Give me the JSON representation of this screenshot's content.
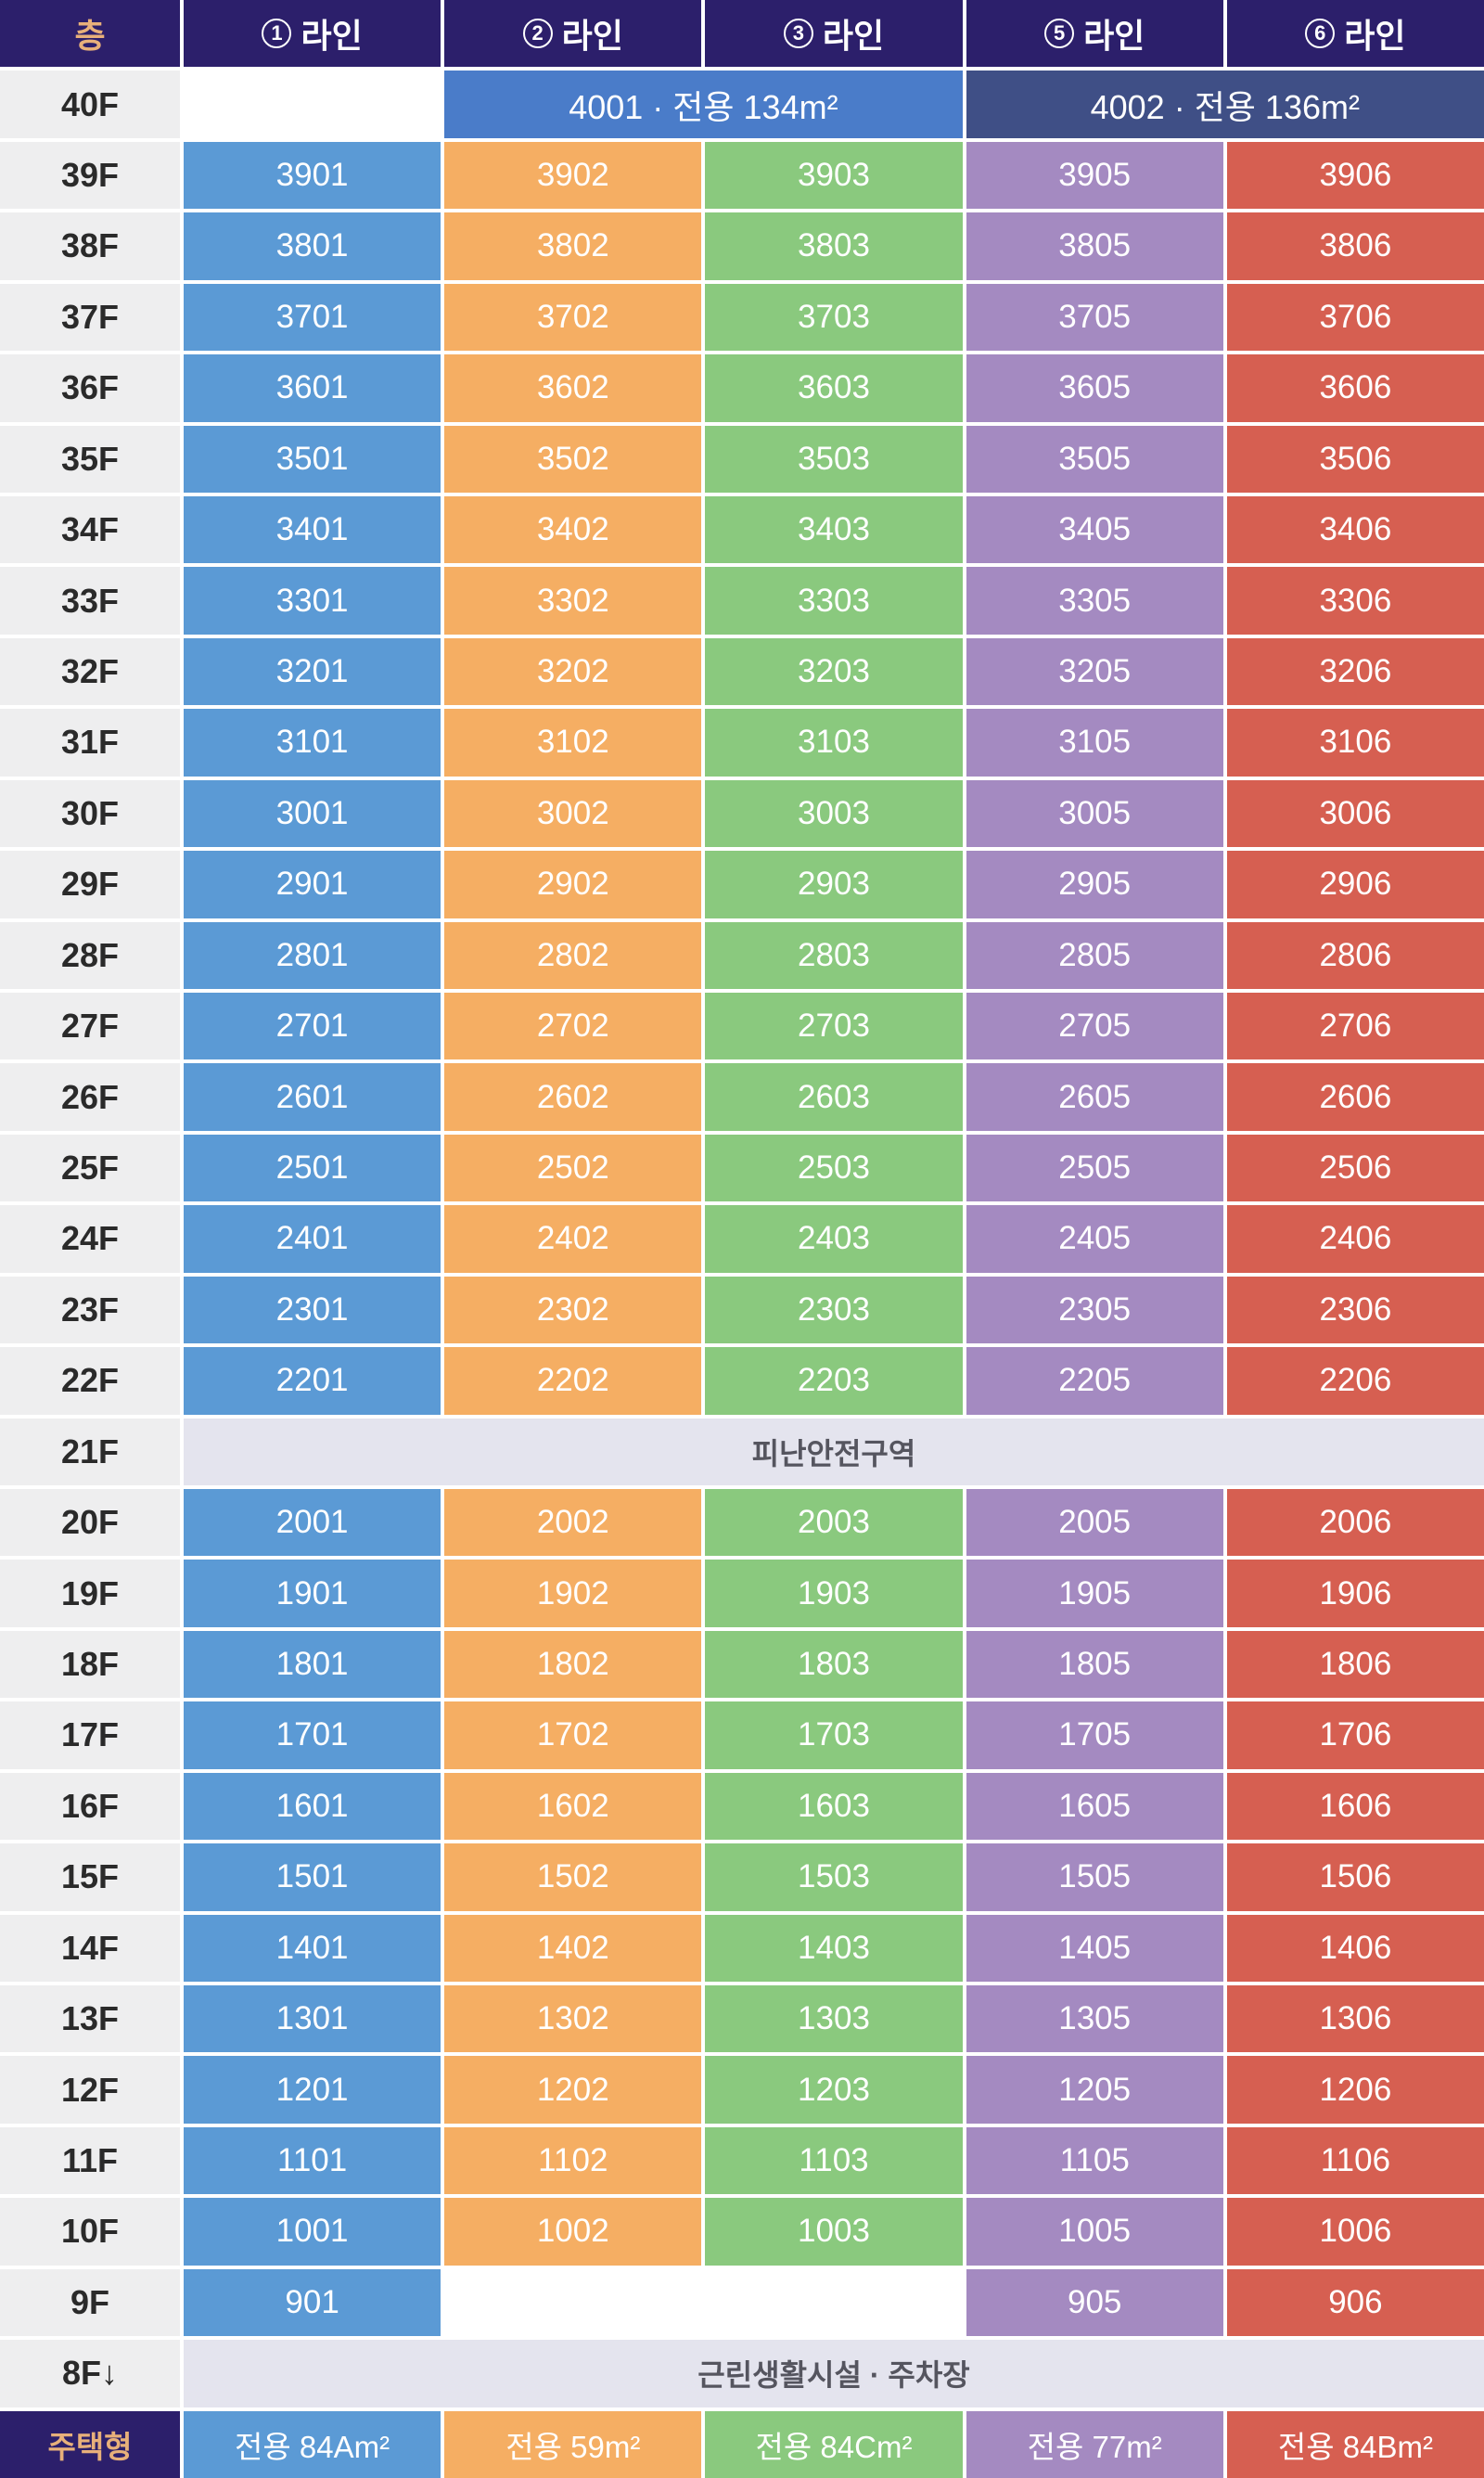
{
  "header": {
    "floor": "층",
    "lines": [
      {
        "num": "1",
        "label": "라인"
      },
      {
        "num": "2",
        "label": "라인"
      },
      {
        "num": "3",
        "label": "라인"
      },
      {
        "num": "5",
        "label": "라인"
      },
      {
        "num": "6",
        "label": "라인"
      }
    ]
  },
  "colors": {
    "header_bg": "#2c1f6b",
    "line1": "#5b9ad5",
    "line2": "#f5ae63",
    "line3": "#8ac97e",
    "line5": "#a48ac1",
    "line6": "#d65f51",
    "penthouse_left": "#4a7cc9",
    "penthouse_right": "#3f4f86"
  },
  "penthouse": {
    "floor": "40F",
    "left": "4001  ·  전용 134m²",
    "right": "4002  ·  전용 136m²"
  },
  "floors_upper": [
    {
      "floor": "39F",
      "units": [
        "3901",
        "3902",
        "3903",
        "3905",
        "3906"
      ]
    },
    {
      "floor": "38F",
      "units": [
        "3801",
        "3802",
        "3803",
        "3805",
        "3806"
      ]
    },
    {
      "floor": "37F",
      "units": [
        "3701",
        "3702",
        "3703",
        "3705",
        "3706"
      ]
    },
    {
      "floor": "36F",
      "units": [
        "3601",
        "3602",
        "3603",
        "3605",
        "3606"
      ]
    },
    {
      "floor": "35F",
      "units": [
        "3501",
        "3502",
        "3503",
        "3505",
        "3506"
      ]
    },
    {
      "floor": "34F",
      "units": [
        "3401",
        "3402",
        "3403",
        "3405",
        "3406"
      ]
    },
    {
      "floor": "33F",
      "units": [
        "3301",
        "3302",
        "3303",
        "3305",
        "3306"
      ]
    },
    {
      "floor": "32F",
      "units": [
        "3201",
        "3202",
        "3203",
        "3205",
        "3206"
      ]
    },
    {
      "floor": "31F",
      "units": [
        "3101",
        "3102",
        "3103",
        "3105",
        "3106"
      ]
    },
    {
      "floor": "30F",
      "units": [
        "3001",
        "3002",
        "3003",
        "3005",
        "3006"
      ]
    },
    {
      "floor": "29F",
      "units": [
        "2901",
        "2902",
        "2903",
        "2905",
        "2906"
      ]
    },
    {
      "floor": "28F",
      "units": [
        "2801",
        "2802",
        "2803",
        "2805",
        "2806"
      ]
    },
    {
      "floor": "27F",
      "units": [
        "2701",
        "2702",
        "2703",
        "2705",
        "2706"
      ]
    },
    {
      "floor": "26F",
      "units": [
        "2601",
        "2602",
        "2603",
        "2605",
        "2606"
      ]
    },
    {
      "floor": "25F",
      "units": [
        "2501",
        "2502",
        "2503",
        "2505",
        "2506"
      ]
    },
    {
      "floor": "24F",
      "units": [
        "2401",
        "2402",
        "2403",
        "2405",
        "2406"
      ]
    },
    {
      "floor": "23F",
      "units": [
        "2301",
        "2302",
        "2303",
        "2305",
        "2306"
      ]
    },
    {
      "floor": "22F",
      "units": [
        "2201",
        "2202",
        "2203",
        "2205",
        "2206"
      ]
    }
  ],
  "refuge": {
    "floor": "21F",
    "label": "피난안전구역"
  },
  "floors_lower": [
    {
      "floor": "20F",
      "units": [
        "2001",
        "2002",
        "2003",
        "2005",
        "2006"
      ]
    },
    {
      "floor": "19F",
      "units": [
        "1901",
        "1902",
        "1903",
        "1905",
        "1906"
      ]
    },
    {
      "floor": "18F",
      "units": [
        "1801",
        "1802",
        "1803",
        "1805",
        "1806"
      ]
    },
    {
      "floor": "17F",
      "units": [
        "1701",
        "1702",
        "1703",
        "1705",
        "1706"
      ]
    },
    {
      "floor": "16F",
      "units": [
        "1601",
        "1602",
        "1603",
        "1605",
        "1606"
      ]
    },
    {
      "floor": "15F",
      "units": [
        "1501",
        "1502",
        "1503",
        "1505",
        "1506"
      ]
    },
    {
      "floor": "14F",
      "units": [
        "1401",
        "1402",
        "1403",
        "1405",
        "1406"
      ]
    },
    {
      "floor": "13F",
      "units": [
        "1301",
        "1302",
        "1303",
        "1305",
        "1306"
      ]
    },
    {
      "floor": "12F",
      "units": [
        "1201",
        "1202",
        "1203",
        "1205",
        "1206"
      ]
    },
    {
      "floor": "11F",
      "units": [
        "1101",
        "1102",
        "1103",
        "1105",
        "1106"
      ]
    },
    {
      "floor": "10F",
      "units": [
        "1001",
        "1002",
        "1003",
        "1005",
        "1006"
      ]
    }
  ],
  "floor9": {
    "floor": "9F",
    "units": [
      "901",
      "",
      "",
      "905",
      "906"
    ]
  },
  "commercial": {
    "floor": "8F↓",
    "label": "근린생활시설  ·  주차장"
  },
  "types": {
    "label": "주택형",
    "values": [
      "전용 84Am²",
      "전용 59m²",
      "전용 84Cm²",
      "전용 77m²",
      "전용 84Bm²"
    ]
  }
}
